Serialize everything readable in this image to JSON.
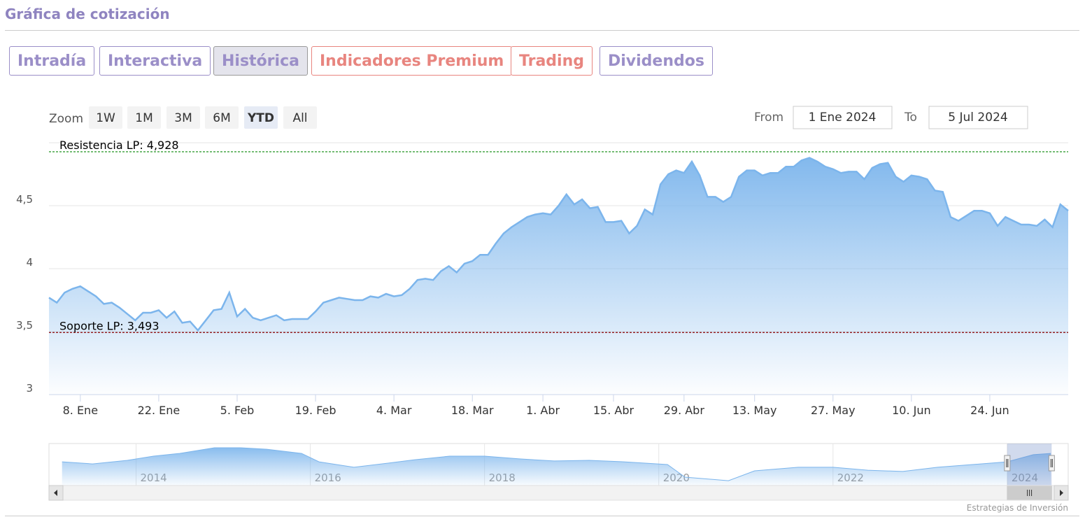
{
  "header": {
    "title": "Gráfica de cotización"
  },
  "tabs": [
    {
      "label": "Intradía",
      "style": "normal"
    },
    {
      "label": "Interactiva",
      "style": "normal"
    },
    {
      "label": "Histórica",
      "style": "active"
    },
    {
      "label": "Indicadores Premium",
      "style": "premium"
    },
    {
      "label": "Trading",
      "style": "premium"
    },
    {
      "label": "Dividendos",
      "style": "normal"
    }
  ],
  "zoom": {
    "label": "Zoom",
    "buttons": [
      "1W",
      "1M",
      "3M",
      "6M",
      "YTD",
      "All"
    ],
    "active": 4
  },
  "range": {
    "from_label": "From",
    "from": "1 Ene 2024",
    "to_label": "To",
    "to": "5 Jul 2024"
  },
  "credit": "Estrategias de Inversión",
  "chart_data": {
    "type": "area",
    "grid": true,
    "xlim": [
      0,
      130
    ],
    "ylim": [
      3,
      5
    ],
    "yticks": [
      3,
      {
        "value": 3.5,
        "label": "3,5"
      },
      4,
      {
        "value": 4.5,
        "label": "4,5"
      }
    ],
    "xticks": [
      {
        "value": 4,
        "label": "8. Ene"
      },
      {
        "value": 14,
        "label": "22. Ene"
      },
      {
        "value": 24,
        "label": "5. Feb"
      },
      {
        "value": 34,
        "label": "19. Feb"
      },
      {
        "value": 44,
        "label": "4. Mar"
      },
      {
        "value": 54,
        "label": "18. Mar"
      },
      {
        "value": 63,
        "label": "1. Abr"
      },
      {
        "value": 72,
        "label": "15. Abr"
      },
      {
        "value": 81,
        "label": "29. Abr"
      },
      {
        "value": 90,
        "label": "13. May"
      },
      {
        "value": 100,
        "label": "27. May"
      },
      {
        "value": 110,
        "label": "10. Jun"
      },
      {
        "value": 120,
        "label": "24. Jun"
      }
    ],
    "plot_lines": [
      {
        "value": 4.928,
        "label": "Resistencia LP: 4,928",
        "color": "#0a8a0a"
      },
      {
        "value": 3.493,
        "label": "Soporte LP: 3,493",
        "color": "#8b0000"
      }
    ],
    "series": [
      {
        "color": "#7cb5ec",
        "x": [
          0,
          1,
          2,
          3,
          4,
          5,
          6,
          7,
          8,
          9,
          10,
          11,
          12,
          13,
          14,
          15,
          16,
          17,
          18,
          19,
          20,
          21,
          22,
          23,
          24,
          25,
          26,
          27,
          28,
          29,
          30,
          31,
          32,
          33,
          34,
          35,
          36,
          37,
          38,
          39,
          40,
          41,
          42,
          43,
          44,
          45,
          46,
          47,
          48,
          49,
          50,
          51,
          52,
          53,
          54,
          55,
          56,
          57,
          58,
          59,
          60,
          61,
          62,
          63,
          64,
          65,
          66,
          67,
          68,
          69,
          70,
          71,
          72,
          73,
          74,
          75,
          76,
          77,
          78,
          79,
          80,
          81,
          82,
          83,
          84,
          85,
          86,
          87,
          88,
          89,
          90,
          91,
          92,
          93,
          94,
          95,
          96,
          97,
          98,
          99,
          100,
          101,
          102,
          103,
          104,
          105,
          106,
          107,
          108,
          109,
          110,
          111,
          112,
          113,
          114,
          115,
          116,
          117,
          118,
          119,
          120,
          121,
          122,
          123,
          124,
          125,
          126,
          127,
          128,
          129,
          130
        ],
        "values": [
          3.77,
          3.73,
          3.81,
          3.84,
          3.86,
          3.82,
          3.78,
          3.72,
          3.73,
          3.69,
          3.64,
          3.59,
          3.65,
          3.65,
          3.67,
          3.61,
          3.66,
          3.57,
          3.58,
          3.51,
          3.59,
          3.67,
          3.68,
          3.81,
          3.62,
          3.68,
          3.61,
          3.59,
          3.61,
          3.63,
          3.59,
          3.6,
          3.6,
          3.6,
          3.66,
          3.73,
          3.75,
          3.77,
          3.76,
          3.75,
          3.75,
          3.78,
          3.77,
          3.8,
          3.78,
          3.79,
          3.84,
          3.91,
          3.92,
          3.91,
          3.98,
          4.02,
          3.97,
          4.04,
          4.06,
          4.11,
          4.11,
          4.2,
          4.28,
          4.33,
          4.37,
          4.41,
          4.43,
          4.44,
          4.43,
          4.5,
          4.59,
          4.51,
          4.55,
          4.48,
          4.49,
          4.37,
          4.37,
          4.38,
          4.28,
          4.34,
          4.47,
          4.43,
          4.67,
          4.75,
          4.78,
          4.76,
          4.85,
          4.74,
          4.57,
          4.57,
          4.53,
          4.57,
          4.73,
          4.78,
          4.78,
          4.74,
          4.76,
          4.76,
          4.81,
          4.81,
          4.86,
          4.88,
          4.85,
          4.81,
          4.79,
          4.76,
          4.77,
          4.77,
          4.71,
          4.8,
          4.83,
          4.84,
          4.73,
          4.69,
          4.74,
          4.73,
          4.71,
          4.62,
          4.61,
          4.41,
          4.38,
          4.42,
          4.46,
          4.46,
          4.44,
          4.34,
          4.41,
          4.38,
          4.35,
          4.35,
          4.34,
          4.39,
          4.33,
          4.51,
          4.46
        ]
      }
    ]
  },
  "navigator": {
    "xlim": [
      2013,
      2024.7
    ],
    "ylim": [
      2,
      5.2
    ],
    "color": "#7cb5ec",
    "xticks": [
      2014,
      2016,
      2018,
      2020,
      2022,
      2024
    ],
    "selected": [
      2024.0,
      2024.51
    ],
    "x": [
      2013.15,
      2013.5,
      2013.9,
      2014.2,
      2014.5,
      2014.9,
      2015.2,
      2015.5,
      2015.9,
      2016.1,
      2016.5,
      2016.9,
      2017.2,
      2017.6,
      2018.0,
      2018.4,
      2018.8,
      2019.2,
      2019.6,
      2020.1,
      2020.3,
      2020.8,
      2021.1,
      2021.6,
      2022.0,
      2022.4,
      2022.8,
      2023.2,
      2023.6,
      2024.0,
      2024.3,
      2024.5
    ],
    "values": [
      3.81,
      3.65,
      3.92,
      4.24,
      4.45,
      4.88,
      4.88,
      4.77,
      4.45,
      3.81,
      3.39,
      3.71,
      3.97,
      4.24,
      4.24,
      4.03,
      3.87,
      3.92,
      3.81,
      3.6,
      2.64,
      2.37,
      3.12,
      3.39,
      3.39,
      3.17,
      3.07,
      3.39,
      3.6,
      3.81,
      4.35,
      4.45
    ]
  }
}
